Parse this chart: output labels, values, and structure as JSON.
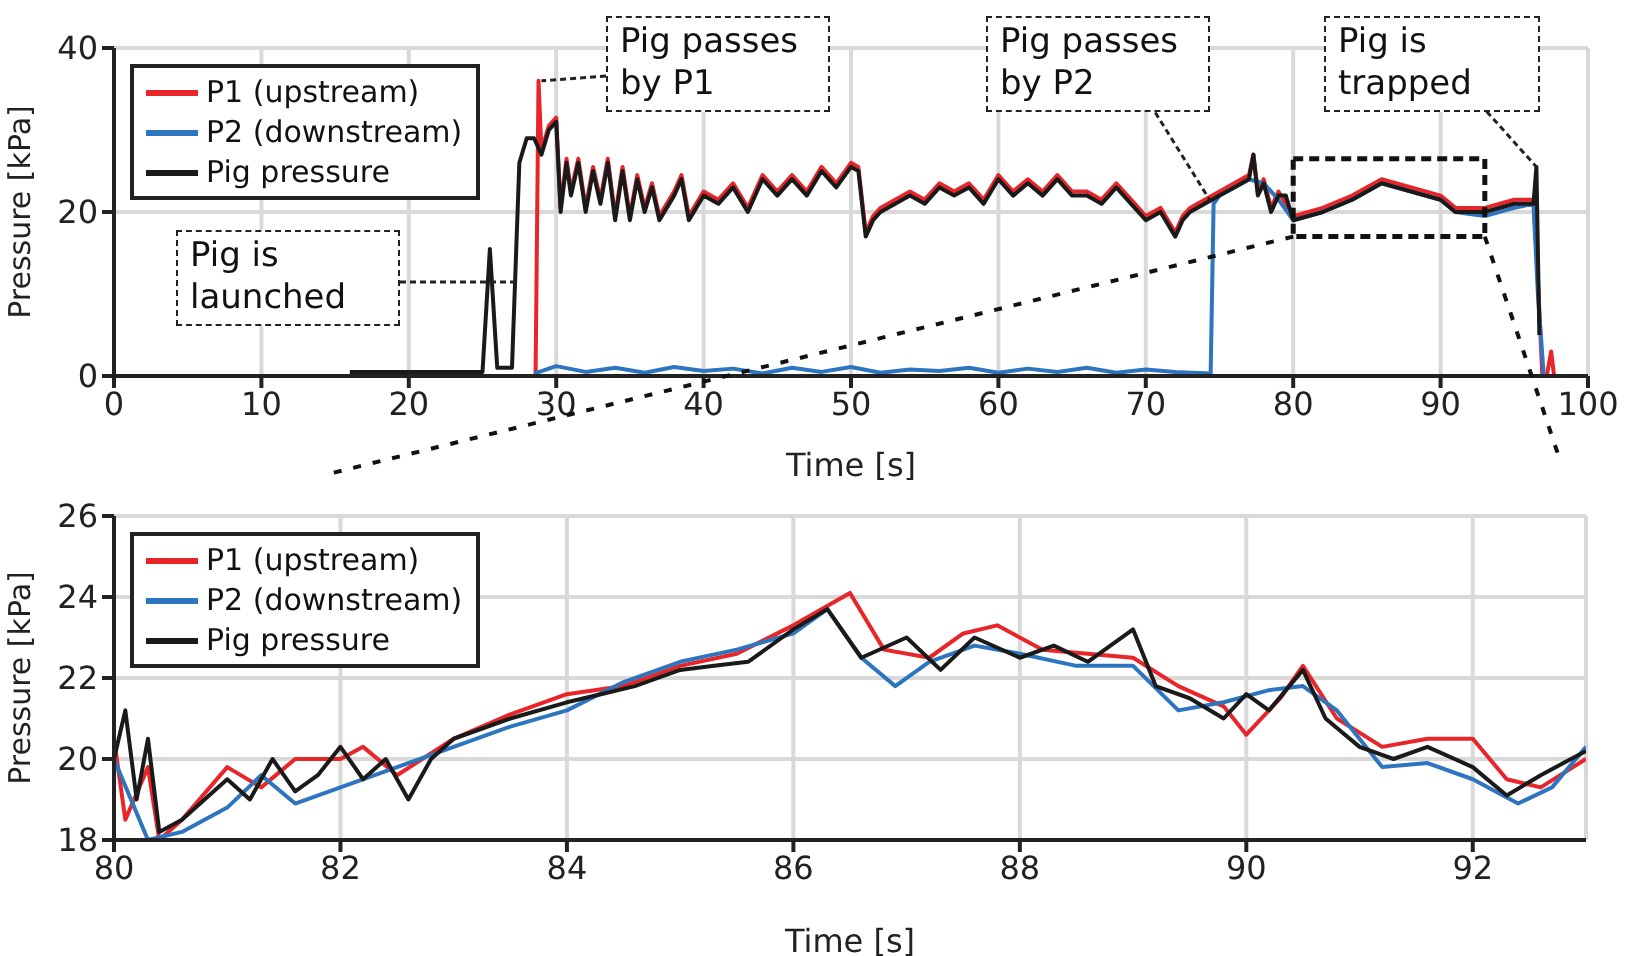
{
  "chart_data": [
    {
      "type": "line",
      "xlabel": "Time [s]",
      "ylabel": "Pressure [kPa]",
      "xlim": [
        0,
        100
      ],
      "ylim": [
        0,
        40
      ],
      "xticks": [
        0,
        10,
        20,
        30,
        40,
        50,
        60,
        70,
        80,
        90,
        100
      ],
      "yticks": [
        0,
        20,
        40
      ],
      "grid": true,
      "legend": "top left",
      "line_style": "solid",
      "annotations": [
        {
          "text": "Pig passes by P1",
          "x": 29,
          "y": 36
        },
        {
          "text": "Pig passes by P2",
          "x": 74.5,
          "y": 21
        },
        {
          "text": "Pig is trapped",
          "x": 96.5,
          "y": 25.5
        },
        "Pig is launched"
      ],
      "series": [
        {
          "name": "P1 (upstream)",
          "color": "#e8262a",
          "x": [
            28.6,
            28.8,
            29,
            29.5,
            30,
            30.3,
            30.7,
            31,
            31.5,
            32,
            32.5,
            33,
            33.5,
            34,
            34.5,
            35,
            35.5,
            36,
            36.5,
            37,
            38,
            38.5,
            39,
            40,
            41,
            42,
            43,
            44,
            45,
            46,
            47,
            48,
            49,
            50,
            50.5,
            51,
            51.5,
            52,
            53,
            54,
            55,
            56,
            57,
            58,
            59,
            60,
            61,
            62,
            63,
            64,
            65,
            66,
            67,
            68,
            69,
            70,
            71,
            72,
            72.5,
            73,
            74,
            75,
            76,
            77,
            77.3,
            77.6,
            78,
            78.5,
            79,
            80,
            82,
            84,
            86,
            88,
            90,
            91,
            93,
            95,
            96.3,
            96.6,
            96.9,
            97.2,
            97.5,
            97.7
          ],
          "values": [
            0,
            36,
            27.5,
            30.5,
            31.5,
            20.5,
            26.5,
            22.5,
            26.5,
            20.5,
            25.5,
            21.5,
            26.5,
            19.5,
            25.5,
            19.5,
            24.5,
            20.5,
            23.5,
            19.5,
            22.5,
            24.5,
            19.5,
            22.5,
            21.5,
            23.5,
            20.5,
            24.5,
            22.5,
            24.5,
            22.5,
            25.5,
            23.5,
            26,
            25.5,
            17.5,
            19.5,
            20.5,
            21.5,
            22.5,
            21.5,
            23.5,
            22.5,
            23.5,
            21.5,
            24.5,
            22.5,
            24,
            22.5,
            24.5,
            22.5,
            22.5,
            21.5,
            23.5,
            21.5,
            19.5,
            20.5,
            17.5,
            19.5,
            20.5,
            21.5,
            22.5,
            23.5,
            24.5,
            27,
            22.5,
            24,
            20.5,
            22.5,
            19.5,
            20.5,
            22,
            24,
            23,
            22,
            20.5,
            20.5,
            21.5,
            21.5,
            12,
            0,
            0,
            3,
            0
          ]
        },
        {
          "name": "P2 (downstream)",
          "color": "#2e75c0",
          "x": [
            28.5,
            30,
            32,
            34,
            36,
            38,
            40,
            42,
            44,
            46,
            48,
            50,
            52,
            54,
            56,
            58,
            60,
            62,
            64,
            66,
            68,
            70,
            72,
            74.4,
            74.6,
            75,
            76,
            77,
            78,
            79,
            80,
            82,
            84,
            86,
            88,
            90,
            91,
            93,
            95,
            96.3,
            96.6,
            97
          ],
          "values": [
            0.3,
            1.2,
            0.5,
            1,
            0.4,
            1.1,
            0.6,
            0.9,
            0.3,
            1,
            0.5,
            1.1,
            0.4,
            0.8,
            0.6,
            1,
            0.4,
            0.9,
            0.5,
            1,
            0.4,
            0.8,
            0.5,
            0.3,
            21,
            22,
            23,
            24,
            23.5,
            21.5,
            19,
            20,
            21.5,
            23.5,
            22.5,
            21.5,
            20,
            19.5,
            20.5,
            21,
            10,
            0
          ]
        },
        {
          "name": "Pig pressure",
          "color": "#1a1a1a",
          "x": [
            16,
            20,
            25,
            25.5,
            26,
            27,
            27.5,
            28,
            28.5,
            29,
            29.5,
            30,
            30.3,
            30.7,
            31,
            31.5,
            32,
            32.5,
            33,
            33.5,
            34,
            34.5,
            35,
            35.5,
            36,
            36.5,
            37,
            38,
            38.5,
            39,
            40,
            41,
            42,
            43,
            44,
            45,
            46,
            47,
            48,
            49,
            50,
            50.5,
            51,
            51.5,
            52,
            53,
            54,
            55,
            56,
            57,
            58,
            59,
            60,
            61,
            62,
            63,
            64,
            65,
            66,
            67,
            68,
            69,
            70,
            71,
            72,
            72.5,
            73,
            74,
            75,
            76,
            77,
            77.3,
            77.6,
            78,
            78.5,
            79,
            79.5,
            80,
            82,
            84,
            86,
            88,
            90,
            91,
            93,
            95,
            96.3,
            96.5,
            96.7
          ],
          "values": [
            0.5,
            0.5,
            0.5,
            15.5,
            1,
            1,
            26,
            29,
            29,
            27,
            30,
            31,
            20,
            26,
            22,
            26,
            20,
            25,
            21,
            26,
            19,
            25,
            19,
            24,
            20,
            23,
            19,
            22,
            24,
            19,
            22,
            21,
            23,
            20,
            24,
            22,
            24,
            22,
            25,
            23,
            25.5,
            25,
            17,
            19,
            20,
            21,
            22,
            21,
            23,
            22,
            23,
            21,
            24,
            22,
            23.5,
            22,
            24,
            22,
            22,
            21,
            23,
            21,
            19,
            20,
            17,
            19,
            20,
            21,
            22,
            23,
            24,
            27,
            22,
            23.5,
            20,
            22,
            22,
            19,
            20,
            21.5,
            23.5,
            22.5,
            21.5,
            20,
            20,
            21,
            21,
            25.5,
            5
          ]
        }
      ]
    },
    {
      "type": "line",
      "xlabel": "Time [s]",
      "ylabel": "Pressure [kPa]",
      "xlim": [
        80,
        93
      ],
      "ylim": [
        18,
        26
      ],
      "xticks": [
        80,
        82,
        84,
        86,
        88,
        90,
        92
      ],
      "yticks": [
        18,
        20,
        22,
        24,
        26
      ],
      "grid": true,
      "legend": "top left",
      "line_style": "solid",
      "series": [
        {
          "name": "P1 (upstream)",
          "color": "#e8262a",
          "x": [
            80,
            80.1,
            80.3,
            80.4,
            80.6,
            81,
            81.3,
            81.6,
            82,
            82.2,
            82.5,
            83,
            83.5,
            84,
            84.5,
            85,
            85.5,
            86,
            86.5,
            86.8,
            87.2,
            87.5,
            87.8,
            88.2,
            88.6,
            89,
            89.4,
            89.8,
            90,
            90.3,
            90.5,
            90.8,
            91.2,
            91.6,
            92,
            92.3,
            92.6,
            93
          ],
          "values": [
            20.5,
            18.5,
            19.8,
            18,
            18.5,
            19.8,
            19.3,
            20,
            20,
            20.3,
            19.6,
            20.5,
            21.1,
            21.6,
            21.8,
            22.3,
            22.6,
            23.3,
            24.1,
            22.7,
            22.5,
            23.1,
            23.3,
            22.7,
            22.6,
            22.5,
            21.8,
            21.3,
            20.6,
            21.5,
            22.3,
            21,
            20.3,
            20.5,
            20.5,
            19.5,
            19.3,
            20
          ]
        },
        {
          "name": "P2 (downstream)",
          "color": "#2e75c0",
          "x": [
            80,
            80.3,
            80.6,
            81,
            81.3,
            81.6,
            82,
            82.5,
            83,
            83.5,
            84,
            84.5,
            85,
            85.5,
            86,
            86.3,
            86.6,
            86.9,
            87.2,
            87.6,
            88,
            88.5,
            89,
            89.4,
            89.8,
            90.2,
            90.5,
            90.8,
            91.2,
            91.6,
            92,
            92.4,
            92.7,
            93
          ],
          "values": [
            20,
            18,
            18.2,
            18.8,
            19.6,
            18.9,
            19.3,
            19.8,
            20.3,
            20.8,
            21.2,
            21.9,
            22.4,
            22.7,
            23.1,
            23.7,
            22.5,
            21.8,
            22.4,
            22.8,
            22.6,
            22.3,
            22.3,
            21.2,
            21.4,
            21.7,
            21.8,
            21.2,
            19.8,
            19.9,
            19.5,
            18.9,
            19.3,
            20.3
          ]
        },
        {
          "name": "Pig pressure",
          "color": "#1a1a1a",
          "x": [
            80,
            80.1,
            80.2,
            80.3,
            80.4,
            80.6,
            80.8,
            81,
            81.2,
            81.4,
            81.6,
            81.8,
            82,
            82.2,
            82.4,
            82.6,
            82.8,
            83,
            83.5,
            84,
            84.3,
            84.6,
            85,
            85.3,
            85.6,
            86,
            86.3,
            86.6,
            87,
            87.3,
            87.6,
            88,
            88.3,
            88.6,
            89,
            89.2,
            89.5,
            89.8,
            90,
            90.2,
            90.5,
            90.7,
            91,
            91.3,
            91.6,
            92,
            92.3,
            92.6,
            93
          ],
          "values": [
            20,
            21.2,
            19,
            20.5,
            18.2,
            18.5,
            19,
            19.5,
            19,
            20,
            19.2,
            19.6,
            20.3,
            19.5,
            20,
            19,
            20,
            20.5,
            21,
            21.4,
            21.6,
            21.8,
            22.2,
            22.3,
            22.4,
            23.2,
            23.7,
            22.5,
            23,
            22.2,
            23,
            22.5,
            22.8,
            22.4,
            23.2,
            21.8,
            21.5,
            21,
            21.6,
            21.2,
            22.2,
            21,
            20.3,
            20,
            20.3,
            19.8,
            19.1,
            19.6,
            20.2
          ]
        }
      ]
    }
  ]
}
